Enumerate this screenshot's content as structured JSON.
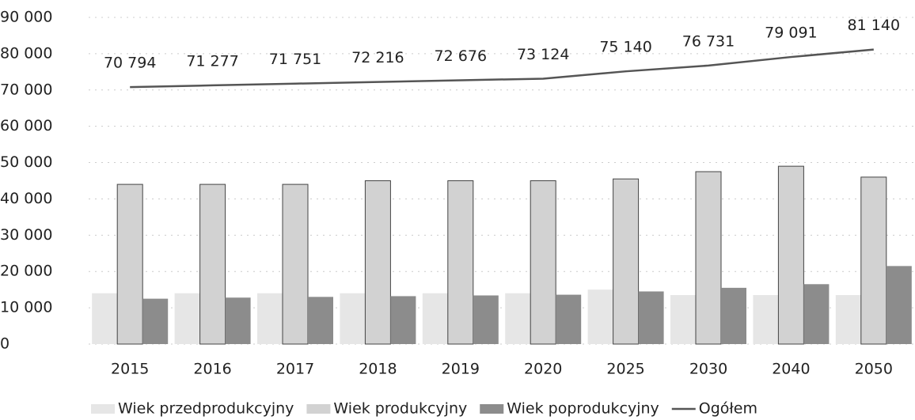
{
  "chart_data": {
    "type": "bar",
    "categories": [
      "2015",
      "2016",
      "2017",
      "2018",
      "2019",
      "2020",
      "2025",
      "2030",
      "2040",
      "2050"
    ],
    "series": [
      {
        "name": "Wiek przedprodukcyjny",
        "type": "bar",
        "color": "#e6e6e6",
        "values": [
          14000,
          14000,
          14000,
          14000,
          14000,
          14000,
          15000,
          13500,
          13500,
          13500
        ]
      },
      {
        "name": "Wiek produkcyjny",
        "type": "bar",
        "color": "#d2d2d2",
        "values": [
          44000,
          44000,
          44000,
          45000,
          45000,
          45000,
          45500,
          47500,
          49000,
          46000
        ]
      },
      {
        "name": "Wiek poprodukcyjny",
        "type": "bar",
        "color": "#8c8c8c",
        "values": [
          12500,
          12800,
          13000,
          13200,
          13400,
          13600,
          14500,
          15500,
          16500,
          21500
        ]
      },
      {
        "name": "Ogółem",
        "type": "line",
        "color": "#555555",
        "values": [
          70794,
          71277,
          71751,
          72216,
          72676,
          73124,
          75140,
          76731,
          79091,
          81140
        ],
        "value_labels": [
          "70 794",
          "71 277",
          "71 751",
          "72 216",
          "72 676",
          "73 124",
          "75 140",
          "76 731",
          "79 091",
          "81 140"
        ]
      }
    ],
    "ylim": [
      0,
      90000
    ],
    "yticks": [
      0,
      {
        "value": 10000,
        "label": "10 000"
      },
      {
        "value": 20000,
        "label": "20 000"
      },
      {
        "value": 30000,
        "label": "30 000"
      },
      {
        "value": 40000,
        "label": "40 000"
      },
      {
        "value": 50000,
        "label": "50 000"
      },
      {
        "value": 60000,
        "label": "60 000"
      },
      {
        "value": 70000,
        "label": "70 000"
      },
      {
        "value": 80000,
        "label": "80 000"
      },
      {
        "value": 90000,
        "label": "90 000"
      }
    ],
    "grid": true,
    "legend": "bottom"
  }
}
